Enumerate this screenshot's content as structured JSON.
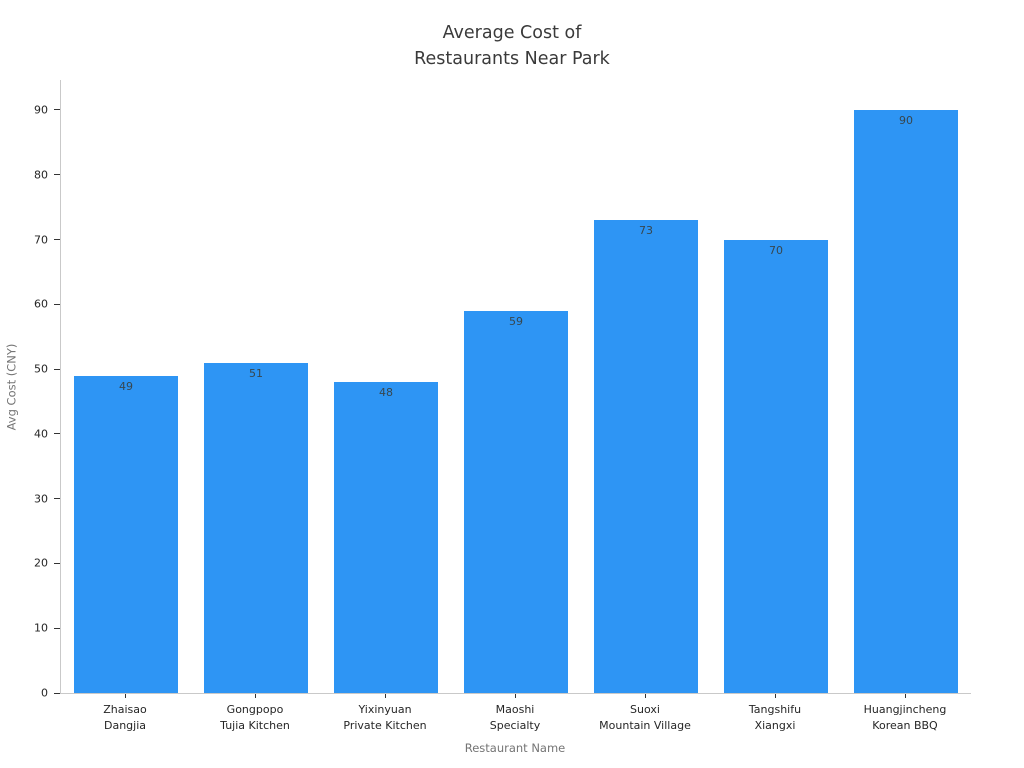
{
  "chart_data": {
    "type": "bar",
    "title": "Average Cost of\nRestaurants Near Park",
    "xlabel": "Restaurant Name",
    "ylabel": "Avg Cost (CNY)",
    "categories": [
      "Zhaisao\nDangjia",
      "Gongpopo\nTujia Kitchen",
      "Yixinyuan\nPrivate Kitchen",
      "Maoshi\nSpecialty",
      "Suoxi\nMountain Village",
      "Tangshifu\nXiangxi",
      "Huangjincheng\nKorean BBQ"
    ],
    "values": [
      49,
      51,
      48,
      59,
      73,
      70,
      90
    ],
    "yticks": [
      0,
      10,
      20,
      30,
      40,
      50,
      60,
      70,
      80,
      90
    ],
    "ylim": [
      0,
      95
    ],
    "grid": false,
    "legend": false,
    "value_label_position": "inside-top",
    "bar_color": "#2e95f4",
    "colors": {
      "bar": "#2e95f4",
      "value_label": "#37474f",
      "tick_label": "#262626",
      "axis_title": "#757575",
      "chart_title": "#3a3a3a",
      "spine": "#c9c9c9"
    }
  }
}
